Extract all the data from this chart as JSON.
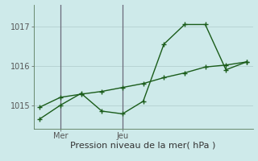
{
  "xlabel_bottom": "Pression niveau de la mer( hPa )",
  "background_color": "#ceeaea",
  "grid_color": "#b8d4d4",
  "line_color": "#1a5c1a",
  "vline_color": "#6a6a7a",
  "ylim": [
    1014.4,
    1017.55
  ],
  "xlim": [
    -0.3,
    10.3
  ],
  "yticks": [
    1015,
    1016,
    1017
  ],
  "xtick_positions": [
    1,
    4
  ],
  "xtick_labels": [
    "Mer",
    "Jeu"
  ],
  "line1_x": [
    0,
    1,
    2,
    3,
    4,
    5,
    6,
    7,
    8,
    9,
    10
  ],
  "line1_y": [
    1014.65,
    1015.0,
    1015.3,
    1014.85,
    1014.78,
    1015.1,
    1016.55,
    1017.05,
    1017.05,
    1015.9,
    1016.1
  ],
  "line2_x": [
    0,
    1,
    2,
    3,
    4,
    5,
    6,
    7,
    8,
    9,
    10
  ],
  "line2_y": [
    1014.95,
    1015.2,
    1015.28,
    1015.35,
    1015.45,
    1015.55,
    1015.7,
    1015.82,
    1015.97,
    1016.02,
    1016.1
  ],
  "vlines_x": [
    1,
    4
  ],
  "markersize": 3,
  "linewidth": 1.0,
  "fontsize_label": 8,
  "fontsize_tick": 7
}
